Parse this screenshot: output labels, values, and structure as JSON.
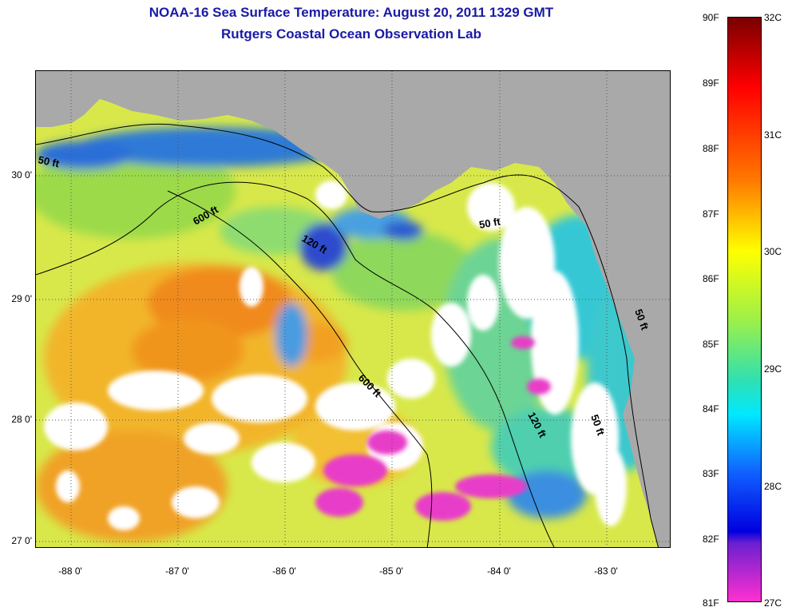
{
  "title_line1": "NOAA-16 Sea Surface Temperature:  August 20, 2011 1329 GMT",
  "title_line2": "Rutgers Coastal Ocean Observation Lab",
  "lat_labels": [
    "30 0'",
    "29 0'",
    "28 0'",
    "27 0'"
  ],
  "lon_labels": [
    "-88 0'",
    "-87 0'",
    "-86 0'",
    "-85 0'",
    "-84 0'",
    "-83 0'"
  ],
  "contour_labels": [
    "50 ft",
    "600 ft",
    "120 ft",
    "50 ft",
    "600 ft",
    "120 ft",
    "50 ft",
    "50 ft"
  ],
  "colorbar_f": [
    "90F",
    "89F",
    "88F",
    "87F",
    "86F",
    "85F",
    "84F",
    "83F",
    "82F",
    "81F"
  ],
  "colorbar_c": [
    "32C",
    "31C",
    "30C",
    "29C",
    "28C",
    "27C"
  ],
  "colors": {
    "land": "#a9a9a9",
    "cloud": "#ffffff",
    "title": "#1a1aa6",
    "warm": "#f0a020",
    "cool": "#2a6ad8"
  }
}
